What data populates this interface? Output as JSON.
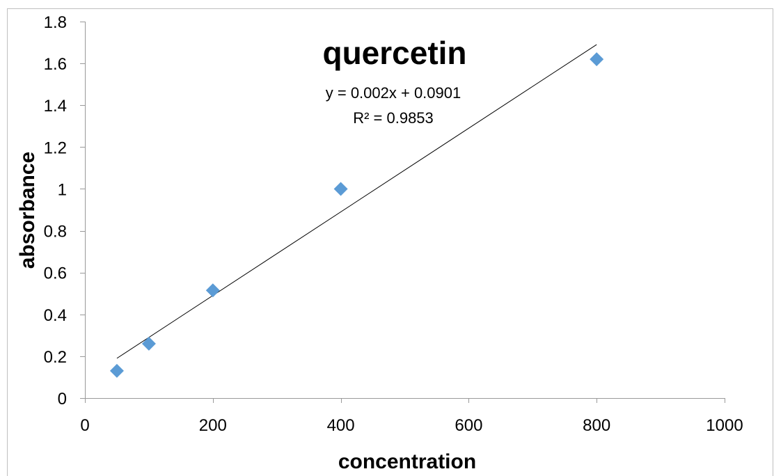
{
  "chart_data": {
    "type": "scatter",
    "title": "quercetin",
    "xlabel": "concentration",
    "ylabel": "absorbance",
    "xlim": [
      0,
      1000
    ],
    "ylim": [
      0,
      1.8
    ],
    "x_ticks": [
      0,
      200,
      400,
      600,
      800,
      1000
    ],
    "y_ticks": [
      0,
      0.2,
      0.4,
      0.6,
      0.8,
      1,
      1.2,
      1.4,
      1.6,
      1.8
    ],
    "x_tick_labels": [
      "0",
      "200",
      "400",
      "600",
      "800",
      "1000"
    ],
    "y_tick_labels": [
      "0",
      "0.2",
      "0.4",
      "0.6",
      "0.8",
      "1",
      "1.2",
      "1.4",
      "1.6",
      "1.8"
    ],
    "grid": false,
    "legend": "none",
    "series": [
      {
        "marker": "diamond",
        "color": "#5B9BD5",
        "points": [
          {
            "x": 50,
            "y": 0.13
          },
          {
            "x": 100,
            "y": 0.26
          },
          {
            "x": 200,
            "y": 0.515
          },
          {
            "x": 400,
            "y": 1.0
          },
          {
            "x": 800,
            "y": 1.62
          }
        ]
      }
    ],
    "trendline": {
      "type": "linear",
      "slope": 0.002,
      "intercept": 0.0901,
      "x_range": [
        50,
        800
      ],
      "color": "#000000",
      "equation_label": "y = 0.002x + 0.0901",
      "r_squared_label": "R² = 0.9853"
    }
  }
}
